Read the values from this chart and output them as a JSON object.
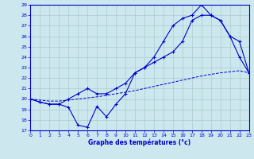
{
  "title": "Graphe des températures (°c)",
  "bg_color": "#cce8ee",
  "line_color": "#0000cc",
  "grid_color": "#aacccc",
  "ylim": [
    17,
    29
  ],
  "xlim": [
    0,
    23
  ],
  "yticks": [
    17,
    18,
    19,
    20,
    21,
    22,
    23,
    24,
    25,
    26,
    27,
    28,
    29
  ],
  "xticks": [
    0,
    1,
    2,
    3,
    4,
    5,
    6,
    7,
    8,
    9,
    10,
    11,
    12,
    13,
    14,
    15,
    16,
    17,
    18,
    19,
    20,
    21,
    22,
    23
  ],
  "series1_x": [
    0,
    1,
    2,
    3,
    4,
    5,
    6,
    7,
    8,
    9,
    10,
    11,
    12,
    13,
    14,
    15,
    16,
    17,
    18,
    19,
    20,
    21,
    22,
    23
  ],
  "series1_y": [
    20.0,
    19.7,
    19.5,
    19.5,
    19.2,
    17.5,
    17.3,
    19.3,
    18.3,
    19.5,
    20.5,
    22.5,
    23.0,
    24.0,
    25.5,
    27.0,
    27.7,
    28.0,
    29.0,
    28.0,
    27.5,
    26.0,
    24.0,
    22.5
  ],
  "series2_x": [
    0,
    1,
    2,
    3,
    4,
    5,
    6,
    7,
    8,
    9,
    10,
    11,
    12,
    13,
    14,
    15,
    16,
    17,
    18,
    19,
    20,
    21,
    22,
    23
  ],
  "series2_y": [
    20.0,
    19.7,
    19.5,
    19.5,
    20.0,
    20.5,
    21.0,
    20.5,
    20.5,
    21.0,
    21.5,
    22.5,
    23.0,
    23.5,
    24.0,
    24.5,
    25.5,
    27.5,
    28.0,
    28.0,
    27.5,
    26.0,
    25.5,
    22.5
  ],
  "series3_x": [
    0,
    1,
    2,
    3,
    4,
    5,
    6,
    7,
    8,
    9,
    10,
    11,
    12,
    13,
    14,
    15,
    16,
    17,
    18,
    19,
    20,
    21,
    22,
    23
  ],
  "series3_y": [
    20.0,
    19.9,
    19.8,
    19.8,
    19.9,
    20.0,
    20.1,
    20.2,
    20.35,
    20.5,
    20.65,
    20.8,
    21.0,
    21.2,
    21.4,
    21.6,
    21.8,
    22.0,
    22.2,
    22.35,
    22.5,
    22.6,
    22.7,
    22.5
  ]
}
